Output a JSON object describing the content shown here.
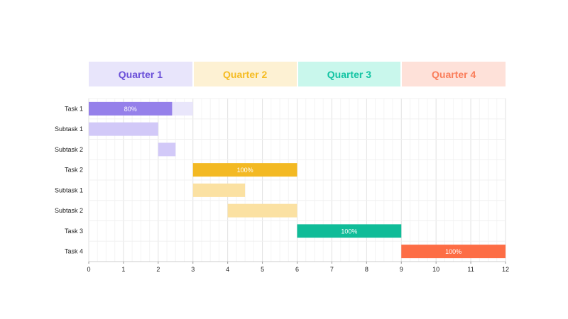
{
  "chart_data": {
    "type": "gantt",
    "quarters": [
      {
        "label": "Quarter 1",
        "start": 0,
        "end": 3,
        "bg": "#e8e5fb",
        "color": "#6a4fd8"
      },
      {
        "label": "Quarter 2",
        "start": 3,
        "end": 6,
        "bg": "#fdf1d3",
        "color": "#f5bc23"
      },
      {
        "label": "Quarter 3",
        "start": 6,
        "end": 9,
        "bg": "#c9f7ec",
        "color": "#13c4a3"
      },
      {
        "label": "Quarter 4",
        "start": 9,
        "end": 12,
        "bg": "#fee1d9",
        "color": "#fa7d5a"
      }
    ],
    "xlim": [
      0,
      12
    ],
    "xticks": [
      0,
      1,
      2,
      3,
      4,
      5,
      6,
      7,
      8,
      9,
      10,
      11,
      12
    ],
    "grid": true,
    "tasks": [
      {
        "name": "Task 1",
        "start": 0,
        "end": 3,
        "progress": 0.8,
        "label": "80%",
        "color": "#9580ea",
        "track_color": "#e9e6fb"
      },
      {
        "name": "Subtask 1",
        "start": 0,
        "end": 2,
        "color": "#d2c9f8"
      },
      {
        "name": "Subtask 2",
        "start": 2,
        "end": 2.5,
        "color": "#d2c9f8"
      },
      {
        "name": "Task 2",
        "start": 3,
        "end": 6,
        "progress": 1.0,
        "label": "100%",
        "color": "#f3b923"
      },
      {
        "name": "Subtask 1",
        "start": 3,
        "end": 4.5,
        "color": "#fbe1a2"
      },
      {
        "name": "Subtask 2",
        "start": 4,
        "end": 6,
        "color": "#fbe1a2"
      },
      {
        "name": "Task 3",
        "start": 6,
        "end": 9,
        "progress": 1.0,
        "label": "100%",
        "color": "#0fbc98"
      },
      {
        "name": "Task 4",
        "start": 9,
        "end": 12,
        "progress": 1.0,
        "label": "100%",
        "color": "#fd6d45"
      }
    ]
  }
}
